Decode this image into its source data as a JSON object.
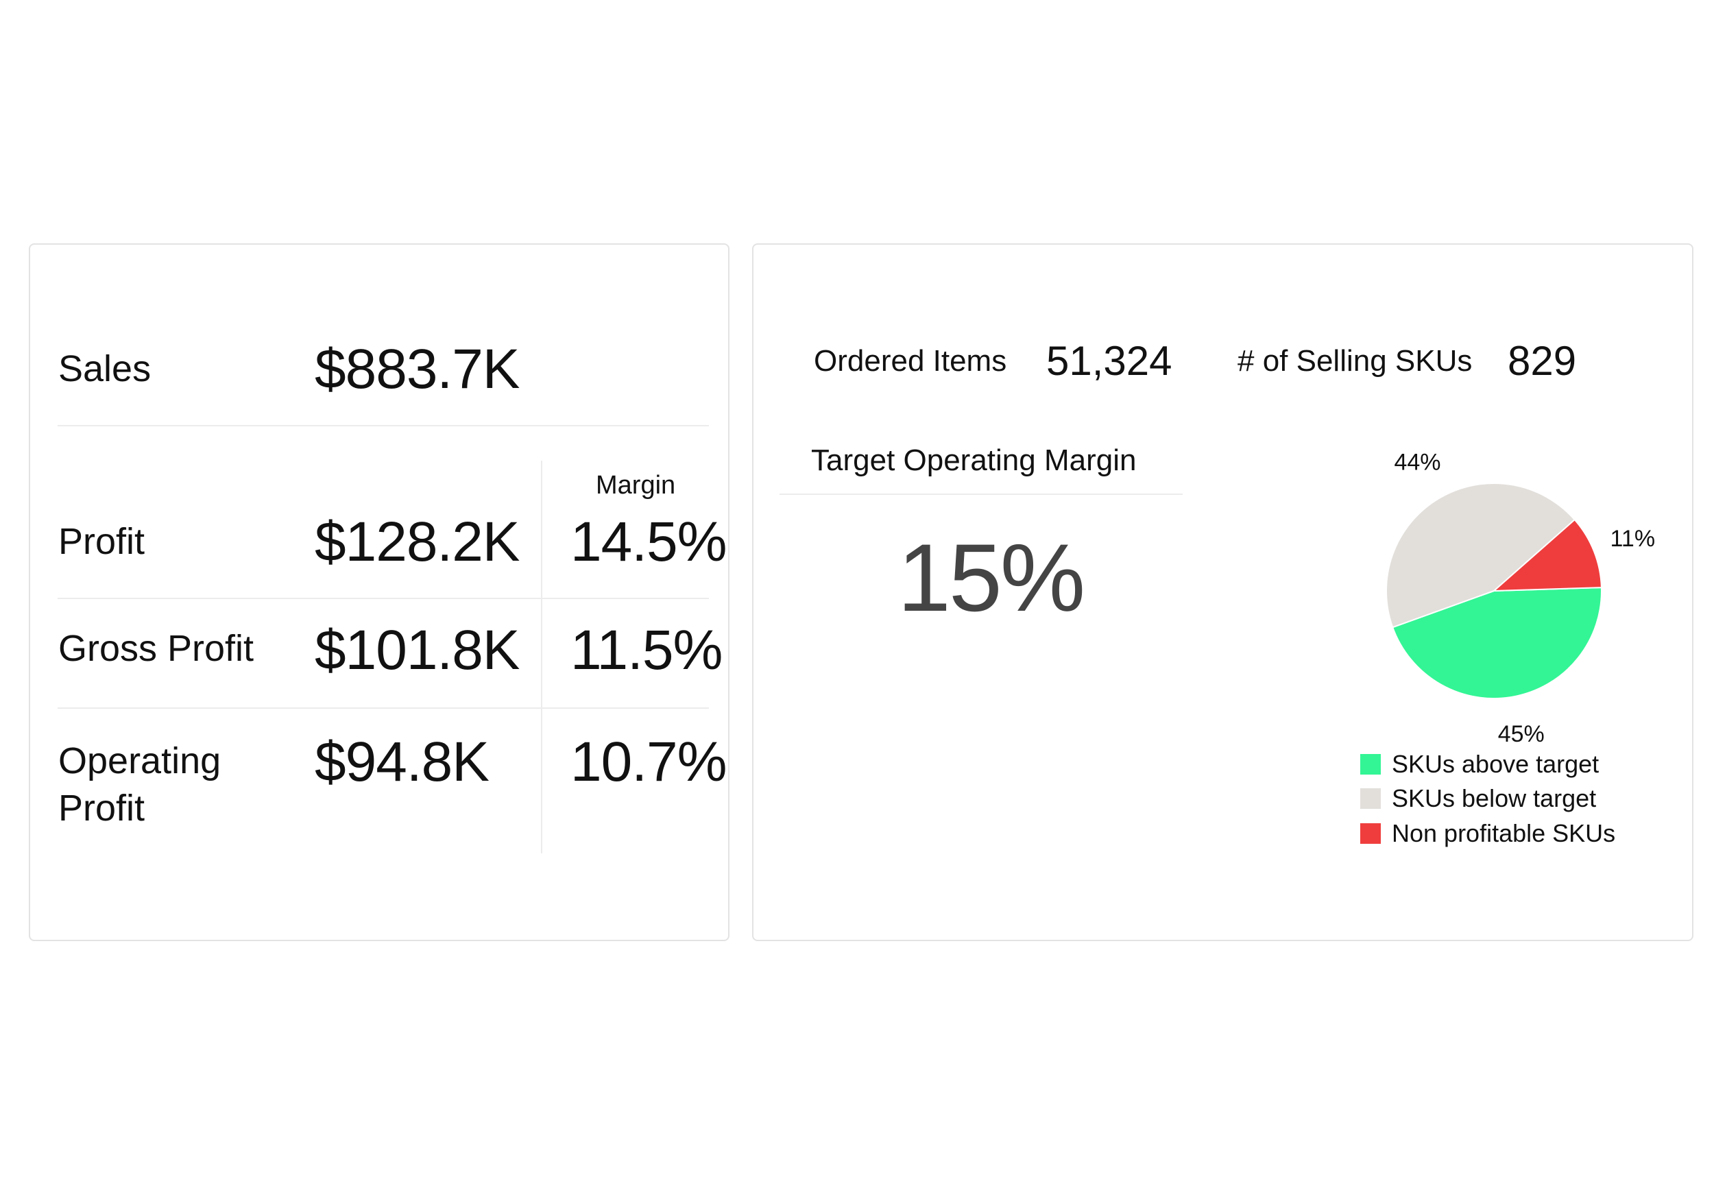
{
  "summary": {
    "sales": {
      "label": "Sales",
      "value": "$883.7K"
    },
    "margin_header": "Margin",
    "rows": [
      {
        "label": "Profit",
        "value": "$128.2K",
        "margin": "14.5%"
      },
      {
        "label": "Gross Profit",
        "value": "$101.8K",
        "margin": "11.5%"
      },
      {
        "label": "Operating Profit",
        "label_line1": "Operating",
        "label_line2": "Profit",
        "value": "$94.8K",
        "margin": "10.7%"
      }
    ]
  },
  "kpis": {
    "ordered_items": {
      "label": "Ordered Items",
      "value": "51,324"
    },
    "selling_skus": {
      "label": "# of Selling SKUs",
      "value": "829"
    }
  },
  "target": {
    "label": "Target Operating Margin",
    "value": "15%"
  },
  "chart_data": {
    "type": "pie",
    "slices": [
      {
        "name": "SKUs above target",
        "value": 45,
        "label": "45%",
        "color": "#33f595"
      },
      {
        "name": "SKUs below target",
        "value": 44,
        "label": "44%",
        "color": "#e2dfdb"
      },
      {
        "name": "Non profitable SKUs",
        "value": 11,
        "label": "11%",
        "color": "#ef3d3d"
      }
    ],
    "legend": [
      "SKUs above target",
      "SKUs below target",
      "Non profitable SKUs"
    ],
    "legend_position": "bottom"
  }
}
